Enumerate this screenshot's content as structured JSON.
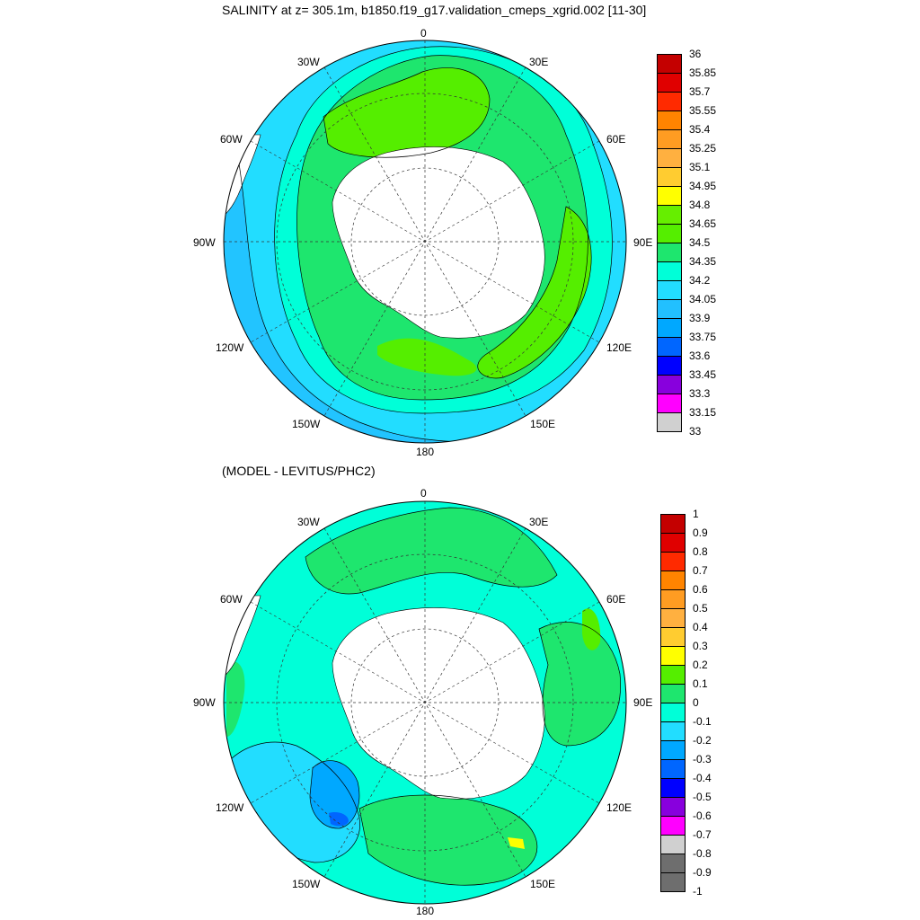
{
  "panel_top": {
    "title": "SALINITY at z= 305.1m, b1850.f19_g17.validation_cmeps_xgrid.002 [11-30]",
    "longitudes": {
      "top": "0",
      "tl": "30W",
      "tr": "30E",
      "ul": "60W",
      "ur": "60E",
      "ml": "90W",
      "mr": "90E",
      "ll": "120W",
      "lr": "120E",
      "bl": "150W",
      "br": "150E",
      "bottom": "180"
    },
    "colorbar": {
      "labels": [
        "36",
        "35.85",
        "35.7",
        "35.55",
        "35.4",
        "35.25",
        "35.1",
        "34.95",
        "34.8",
        "34.65",
        "34.5",
        "34.35",
        "34.2",
        "34.05",
        "33.9",
        "33.75",
        "33.6",
        "33.45",
        "33.3",
        "33.15",
        "33"
      ],
      "colors": [
        "#c40000",
        "#e00000",
        "#ff2a00",
        "#ff8400",
        "#ff9c22",
        "#ffb040",
        "#ffcc30",
        "#ffff00",
        "#66ee00",
        "#55ee00",
        "#1ee66e",
        "#00ffd8",
        "#22ddff",
        "#22c0ff",
        "#00a8ff",
        "#0066ff",
        "#0000ff",
        "#8800dd",
        "#ff00ff",
        "#d0d0d0",
        "#6e6e6e"
      ]
    }
  },
  "panel_bottom": {
    "title": "(MODEL - LEVITUS/PHC2)",
    "longitudes": {
      "top": "0",
      "tl": "30W",
      "tr": "30E",
      "ul": "60W",
      "ur": "60E",
      "ml": "90W",
      "mr": "90E",
      "ll": "120W",
      "lr": "120E",
      "bl": "150W",
      "br": "150E",
      "bottom": "180"
    },
    "colorbar": {
      "labels": [
        "1",
        "0.9",
        "0.8",
        "0.7",
        "0.6",
        "0.5",
        "0.4",
        "0.3",
        "0.2",
        "0.1",
        "0",
        "-0.1",
        "-0.2",
        "-0.3",
        "-0.4",
        "-0.5",
        "-0.6",
        "-0.7",
        "-0.8",
        "-0.9",
        "-1"
      ],
      "colors": [
        "#c40000",
        "#e00000",
        "#ff2a00",
        "#ff8400",
        "#ff9c22",
        "#ffb040",
        "#ffcc30",
        "#ffff00",
        "#55ee00",
        "#1ee66e",
        "#00ffd8",
        "#22ddff",
        "#00a8ff",
        "#0066ff",
        "#0000ff",
        "#8800dd",
        "#ff00ff",
        "#d0d0d0",
        "#6e6e6e",
        "#6e6e6e"
      ]
    }
  },
  "colors": {
    "land": "#ffffff",
    "outline": "#000000"
  }
}
